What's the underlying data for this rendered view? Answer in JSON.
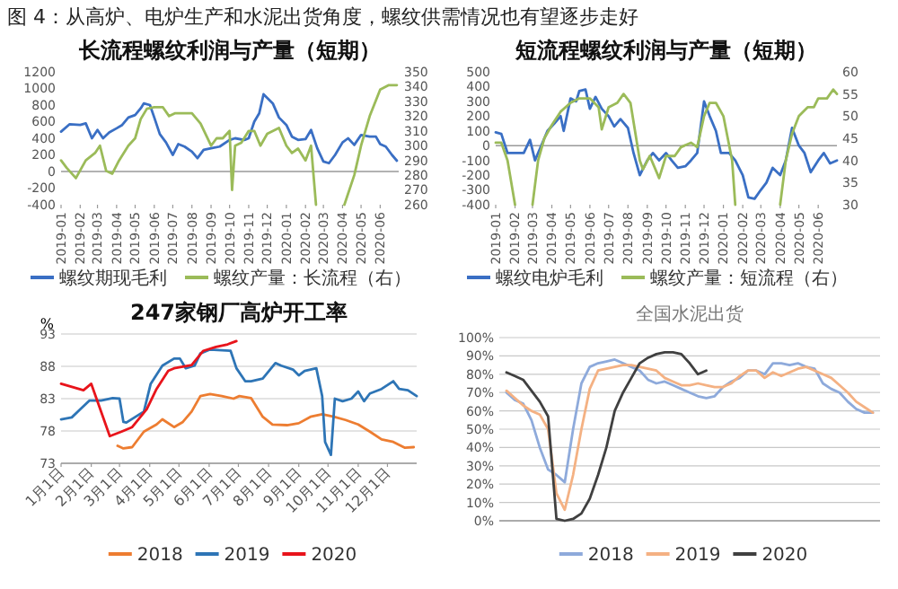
{
  "chart_data": [
    {
      "type": "line",
      "title": "长流程螺纹利润与产量（短期）",
      "annotations": [
        "图 4：从高炉、电炉生产和水泥出货角度，螺纹供需情况也有望逐步走好"
      ],
      "legend": "bottom",
      "xlim": [
        "2019-01",
        "2020-07"
      ],
      "xticks": [
        "2019-01",
        "2019-02",
        "2019-03",
        "2019-04",
        "2019-05",
        "2019-06",
        "2019-07",
        "2019-08",
        "2019-09",
        "2019-10",
        "2019-11",
        "2019-12",
        "2020-01",
        "2020-02",
        "2020-03",
        "2020-04",
        "2020-05",
        "2020-06"
      ],
      "ylim": [
        -400,
        1200
      ],
      "yticks": [
        -400,
        -200,
        0,
        200,
        400,
        600,
        800,
        1000,
        1200
      ],
      "y2lim": [
        260,
        350
      ],
      "y2ticks": [
        260,
        270,
        280,
        290,
        300,
        310,
        320,
        330,
        340,
        350
      ],
      "series": [
        {
          "name": "螺纹期现毛利",
          "color": "#3a6fc4",
          "x": [
            "2019-01-01",
            "2019-01-15",
            "2019-02-01",
            "2019-02-10",
            "2019-02-20",
            "2019-03-01",
            "2019-03-10",
            "2019-03-20",
            "2019-04-01",
            "2019-04-10",
            "2019-04-20",
            "2019-05-01",
            "2019-05-10",
            "2019-05-15",
            "2019-05-25",
            "2019-06-01",
            "2019-06-10",
            "2019-06-20",
            "2019-07-01",
            "2019-07-10",
            "2019-07-20",
            "2019-08-01",
            "2019-08-10",
            "2019-08-20",
            "2019-09-01",
            "2019-09-15",
            "2019-10-01",
            "2019-10-10",
            "2019-10-25",
            "2019-11-01",
            "2019-11-10",
            "2019-11-18",
            "2019-11-25",
            "2019-12-10",
            "2019-12-20",
            "2020-01-01",
            "2020-01-10",
            "2020-01-20",
            "2020-02-01",
            "2020-02-10",
            "2020-02-20",
            "2020-03-01",
            "2020-03-10",
            "2020-03-20",
            "2020-04-01",
            "2020-04-10",
            "2020-04-20",
            "2020-05-01",
            "2020-05-15",
            "2020-05-25",
            "2020-06-01",
            "2020-06-10",
            "2020-06-20",
            "2020-06-28"
          ],
          "values": [
            480,
            570,
            560,
            580,
            400,
            500,
            400,
            470,
            520,
            560,
            650,
            680,
            760,
            820,
            800,
            650,
            450,
            350,
            200,
            330,
            300,
            240,
            160,
            260,
            280,
            300,
            380,
            400,
            380,
            400,
            600,
            700,
            930,
            820,
            650,
            560,
            420,
            380,
            390,
            500,
            280,
            120,
            100,
            200,
            350,
            400,
            320,
            440,
            420,
            420,
            330,
            300,
            200,
            130
          ]
        },
        {
          "name": "螺纹产量：长流程（右）",
          "color": "#9bbb59",
          "axis": "y2",
          "x": [
            "2019-01-01",
            "2019-01-10",
            "2019-01-25",
            "2019-02-10",
            "2019-02-25",
            "2019-03-05",
            "2019-03-15",
            "2019-03-25",
            "2019-04-05",
            "2019-04-20",
            "2019-05-01",
            "2019-05-10",
            "2019-05-20",
            "2019-06-01",
            "2019-06-15",
            "2019-06-25",
            "2019-07-05",
            "2019-07-20",
            "2019-08-01",
            "2019-08-15",
            "2019-09-01",
            "2019-09-10",
            "2019-09-20",
            "2019-10-01",
            "2019-10-05",
            "2019-10-10",
            "2019-10-20",
            "2019-11-01",
            "2019-11-10",
            "2019-11-20",
            "2019-12-01",
            "2019-12-20",
            "2020-01-01",
            "2020-01-10",
            "2020-01-20",
            "2020-02-01",
            "2020-02-10",
            "2020-02-18",
            "2020-03-10",
            "2020-04-04",
            "2020-04-20",
            "2020-05-01",
            "2020-05-15",
            "2020-06-01",
            "2020-06-15",
            "2020-06-28"
          ],
          "values": [
            290,
            285,
            278,
            290,
            295,
            300,
            283,
            281,
            290,
            300,
            305,
            318,
            325,
            326,
            326,
            320,
            322,
            322,
            322,
            315,
            300,
            305,
            305,
            310,
            270,
            300,
            302,
            310,
            310,
            300,
            308,
            312,
            300,
            295,
            298,
            290,
            300,
            260,
            null,
            260,
            280,
            300,
            320,
            338,
            341,
            341
          ]
        }
      ]
    },
    {
      "type": "line",
      "title": "短流程螺纹利润与产量（短期）",
      "legend": "bottom",
      "xlim": [
        "2019-01",
        "2020-07"
      ],
      "xticks": [
        "2019-01",
        "2019-02",
        "2019-03",
        "2019-04",
        "2019-05",
        "2019-06",
        "2019-07",
        "2019-08",
        "2019-09",
        "2019-10",
        "2019-11",
        "2019-12",
        "2020-01",
        "2020-02",
        "2020-03",
        "2020-04",
        "2020-05",
        "2020-06"
      ],
      "ylim": [
        -400,
        500
      ],
      "yticks": [
        -400,
        -300,
        -200,
        -100,
        0,
        100,
        200,
        300,
        400,
        500
      ],
      "y2lim": [
        30,
        60
      ],
      "y2ticks": [
        30,
        35,
        40,
        45,
        50,
        55,
        60
      ],
      "series": [
        {
          "name": "螺纹电炉毛利",
          "color": "#3a6fc4",
          "x": [
            "2019-01-01",
            "2019-01-10",
            "2019-01-20",
            "2019-02-01",
            "2019-02-15",
            "2019-02-25",
            "2019-03-05",
            "2019-03-15",
            "2019-03-25",
            "2019-04-05",
            "2019-04-15",
            "2019-04-20",
            "2019-05-01",
            "2019-05-10",
            "2019-05-15",
            "2019-05-25",
            "2019-06-01",
            "2019-06-10",
            "2019-06-20",
            "2019-07-01",
            "2019-07-10",
            "2019-07-20",
            "2019-08-01",
            "2019-08-10",
            "2019-08-20",
            "2019-09-01",
            "2019-09-10",
            "2019-09-20",
            "2019-10-01",
            "2019-10-10",
            "2019-10-20",
            "2019-11-01",
            "2019-11-10",
            "2019-11-20",
            "2019-12-01",
            "2019-12-10",
            "2019-12-20",
            "2019-12-28",
            "2020-01-10",
            "2020-01-20",
            "2020-02-01",
            "2020-02-10",
            "2020-02-20",
            "2020-03-01",
            "2020-03-10",
            "2020-03-20",
            "2020-04-01",
            "2020-04-10",
            "2020-04-20",
            "2020-05-01",
            "2020-05-10",
            "2020-05-20",
            "2020-06-01",
            "2020-06-10",
            "2020-06-20",
            "2020-07-01"
          ],
          "values": [
            90,
            80,
            -50,
            -50,
            -50,
            40,
            -100,
            0,
            100,
            150,
            200,
            100,
            320,
            300,
            370,
            380,
            250,
            330,
            250,
            200,
            130,
            180,
            120,
            -50,
            -200,
            -100,
            -50,
            -100,
            -50,
            -100,
            -150,
            -140,
            -100,
            -50,
            300,
            200,
            100,
            -50,
            -50,
            -100,
            -200,
            -350,
            -360,
            -300,
            -250,
            -150,
            -200,
            -100,
            120,
            0,
            -50,
            -180,
            -100,
            -50,
            -120,
            -100
          ]
        },
        {
          "name": "螺纹产量：短流程（右）",
          "color": "#9bbb59",
          "axis": "y2",
          "x": [
            "2019-01-01",
            "2019-01-10",
            "2019-01-20",
            "2019-02-01",
            "2019-02-15",
            "2019-03-01",
            "2019-03-10",
            "2019-03-20",
            "2019-04-01",
            "2019-04-15",
            "2019-05-01",
            "2019-05-15",
            "2019-06-01",
            "2019-06-15",
            "2019-06-20",
            "2019-07-01",
            "2019-07-15",
            "2019-07-25",
            "2019-08-05",
            "2019-08-20",
            "2019-08-25",
            "2019-09-05",
            "2019-09-20",
            "2019-10-01",
            "2019-10-15",
            "2019-10-25",
            "2019-11-10",
            "2019-11-20",
            "2019-12-01",
            "2019-12-10",
            "2019-12-20",
            "2020-01-01",
            "2020-01-15",
            "2020-01-20",
            "2020-03-01",
            "2020-04-01",
            "2020-04-10",
            "2020-04-20",
            "2020-05-01",
            "2020-05-15",
            "2020-05-25",
            "2020-06-01",
            "2020-06-15",
            "2020-06-25",
            "2020-07-01"
          ],
          "values": [
            44,
            44,
            40,
            30,
            null,
            30,
            40,
            45,
            48,
            51,
            53,
            54,
            54,
            52,
            47,
            52,
            53,
            55,
            53,
            40,
            38,
            41,
            36,
            41,
            41,
            43,
            44,
            43,
            50,
            53,
            53,
            50,
            40,
            30,
            null,
            30,
            40,
            46,
            50,
            52,
            52,
            54,
            54,
            56,
            55
          ]
        }
      ]
    },
    {
      "type": "line",
      "title": "247家钢厂高炉开工率",
      "ylabel": "%",
      "legend": "bottom",
      "grid": "y",
      "xlim": [
        "--01-01",
        "--12-31"
      ],
      "xticks": [
        {
          "value": "--01-01",
          "label": "1月1日"
        },
        {
          "value": "--02-01",
          "label": "2月1日"
        },
        {
          "value": "--03-01",
          "label": "3月1日"
        },
        {
          "value": "--04-01",
          "label": "4月1日"
        },
        {
          "value": "--05-01",
          "label": "5月1日"
        },
        {
          "value": "--06-01",
          "label": "6月1日"
        },
        {
          "value": "--07-01",
          "label": "7月1日"
        },
        {
          "value": "--08-01",
          "label": "8月1日"
        },
        {
          "value": "--09-01",
          "label": "9月1日"
        },
        {
          "value": "--10-01",
          "label": "10月1日"
        },
        {
          "value": "--11-01",
          "label": "11月1日"
        },
        {
          "value": "--12-01",
          "label": "12月1日"
        }
      ],
      "ylim": [
        73,
        93
      ],
      "yticks": [
        73,
        78,
        83,
        88,
        93
      ],
      "series": [
        {
          "name": "2018",
          "color": "#ed7d31",
          "x": [
            "--02-28",
            "--03-05",
            "--03-14",
            "--03-26",
            "--04-08",
            "--04-14",
            "--04-26",
            "--05-05",
            "--05-14",
            "--05-23",
            "--06-02",
            "--06-14",
            "--06-26",
            "--07-02",
            "--07-14",
            "--07-26",
            "--08-05",
            "--08-20",
            "--09-01",
            "--09-13",
            "--09-25",
            "--10-07",
            "--10-19",
            "--11-01",
            "--11-13",
            "--11-25",
            "--12-07",
            "--12-19",
            "--12-28"
          ],
          "values": [
            75.7,
            75.3,
            75.5,
            77.9,
            79,
            79.8,
            78.6,
            79.4,
            81,
            83.4,
            83.7,
            83.4,
            83,
            83.4,
            83.1,
            80.2,
            79,
            78.9,
            79.2,
            80.2,
            80.6,
            80.2,
            79.7,
            79,
            77.9,
            76.7,
            76.3,
            75.4,
            75.5
          ]
        },
        {
          "name": "2019",
          "color": "#2e75b6",
          "x": [
            "--01-01",
            "--01-12",
            "--01-21",
            "--01-30",
            "--02-11",
            "--02-23",
            "--03-01",
            "--03-05",
            "--03-08",
            "--03-26",
            "--04-02",
            "--04-14",
            "--04-26",
            "--05-02",
            "--05-08",
            "--05-17",
            "--05-23",
            "--06-02",
            "--06-23",
            "--06-29",
            "--07-08",
            "--07-14",
            "--07-26",
            "--08-08",
            "--08-14",
            "--08-26",
            "--09-01",
            "--09-07",
            "--09-19",
            "--09-25",
            "--09-28",
            "--10-04",
            "--10-08",
            "--10-16",
            "--10-25",
            "--11-01",
            "--11-07",
            "--11-13",
            "--11-25",
            "--12-07",
            "--12-13",
            "--12-22",
            "--12-31"
          ],
          "values": [
            79.8,
            80.1,
            81.4,
            82.7,
            82.7,
            83.1,
            83,
            79.4,
            79.3,
            81,
            85.3,
            88.1,
            89.2,
            89.2,
            87.7,
            88.1,
            90,
            90.6,
            90.4,
            87.7,
            85.7,
            85.7,
            86.1,
            88.5,
            88.1,
            87.5,
            86.6,
            87.3,
            87.7,
            83.4,
            76.3,
            74.3,
            83,
            82.6,
            83,
            84.1,
            82.6,
            83.8,
            84.5,
            85.7,
            84.5,
            84.3,
            83.4
          ]
        },
        {
          "name": "2020",
          "color": "#e8141b",
          "x": [
            "--01-01",
            "--01-24",
            "--02-01",
            "--02-20",
            "--03-03",
            "--03-14",
            "--03-29",
            "--04-08",
            "--04-20",
            "--04-26",
            "--05-14",
            "--05-26",
            "--06-08",
            "--06-20",
            "--06-29"
          ],
          "values": [
            85.3,
            84.3,
            85.3,
            77.2,
            77.9,
            78.6,
            81.4,
            84.5,
            87.3,
            87.7,
            88.2,
            90.4,
            91,
            91.4,
            91.9
          ]
        }
      ]
    },
    {
      "type": "line",
      "title": "全国水泥出货",
      "legend": "bottom",
      "grid": "y",
      "categories": [
        null,
        null,
        null,
        null,
        null,
        null,
        null,
        null,
        null,
        null,
        null,
        null,
        null,
        null,
        null,
        null,
        null,
        null,
        null,
        null,
        null,
        null,
        null,
        null,
        null,
        null,
        null,
        null,
        null,
        null,
        null,
        null,
        null,
        null,
        null,
        null,
        null,
        null,
        null,
        null,
        null,
        null,
        null,
        null,
        null
      ],
      "ylim": [
        0,
        100
      ],
      "yticks": [
        {
          "value": 0,
          "label": "0%"
        },
        {
          "value": 10,
          "label": "10%"
        },
        {
          "value": 20,
          "label": "20%"
        },
        {
          "value": 30,
          "label": "30%"
        },
        {
          "value": 40,
          "label": "40%"
        },
        {
          "value": 50,
          "label": "50%"
        },
        {
          "value": 60,
          "label": "60%"
        },
        {
          "value": 70,
          "label": "70%"
        },
        {
          "value": 80,
          "label": "80%"
        },
        {
          "value": 90,
          "label": "90%"
        },
        {
          "value": 100,
          "label": "100%"
        }
      ],
      "series": [
        {
          "name": "2018",
          "color": "#8eaadb",
          "values": [
            70,
            66,
            64,
            55,
            40,
            28,
            25,
            21,
            50,
            75,
            84,
            86,
            87,
            88,
            86,
            84,
            82,
            77,
            75,
            76,
            74,
            72,
            70,
            68,
            67,
            68,
            73,
            76,
            78,
            82,
            82,
            80,
            86,
            86,
            85,
            86,
            84,
            83,
            75,
            72,
            70,
            65,
            61,
            59,
            59
          ]
        },
        {
          "name": "2019",
          "color": "#f4b183",
          "values": [
            71,
            67,
            63,
            60,
            58,
            50,
            15,
            6,
            25,
            50,
            72,
            82,
            83,
            84,
            85,
            85,
            84,
            83,
            82,
            78,
            76,
            74,
            74,
            75,
            74,
            73,
            73,
            75,
            79,
            82,
            82,
            78,
            81,
            79,
            81,
            83,
            84,
            82,
            80,
            78,
            74,
            70,
            65,
            62,
            59
          ]
        },
        {
          "name": "2020",
          "color": "#404040",
          "values": [
            81,
            79,
            77,
            71,
            65,
            57,
            1,
            0,
            1,
            4,
            12,
            25,
            40,
            60,
            70,
            78,
            86,
            89,
            91,
            92,
            92,
            91,
            86,
            80,
            82,
            null,
            null,
            null,
            null,
            null,
            null,
            null,
            null,
            null,
            null,
            null,
            null,
            null,
            null,
            null,
            null,
            null,
            null,
            null,
            null
          ]
        }
      ]
    }
  ]
}
